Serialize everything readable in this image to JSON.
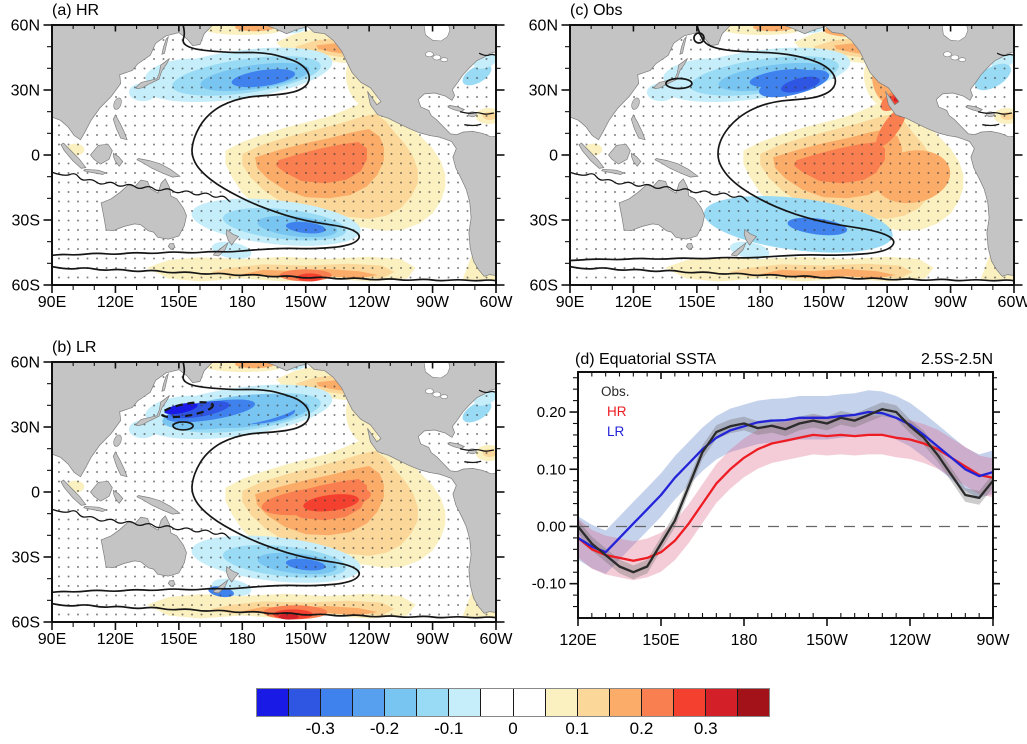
{
  "panels": {
    "a": {
      "label": "(a) HR"
    },
    "b": {
      "label": "(b) LR"
    },
    "c": {
      "label": "(c) Obs"
    },
    "d": {
      "label": "(d) Equatorial SSTA",
      "annotation": "2.5S-2.5N",
      "legend": [
        {
          "name": "Obs.",
          "color": "#2b2b2b"
        },
        {
          "name": "HR",
          "color": "#ee1c23"
        },
        {
          "name": "LR",
          "color": "#2323d8"
        }
      ]
    }
  },
  "map_axes": {
    "x_tick_labels": [
      "90E",
      "120E",
      "150E",
      "180",
      "150W",
      "120W",
      "90W",
      "60W"
    ],
    "x_tick_lons_deg_east": [
      90,
      120,
      150,
      180,
      210,
      240,
      270,
      300
    ],
    "y_tick_labels": [
      "60N",
      "30N",
      "0",
      "30S",
      "60S"
    ],
    "y_tick_lats": [
      60,
      30,
      0,
      -30,
      -60
    ],
    "minor_tick_step_deg": 10
  },
  "colorbar": {
    "tick_labels": [
      "-0.3",
      "-0.2",
      "-0.1",
      "0",
      "0.1",
      "0.2",
      "0.3"
    ],
    "cell_colors": [
      "#1a1ae6",
      "#2f55e3",
      "#3f82ee",
      "#57a0ef",
      "#79c5f2",
      "#99dbf5",
      "#c6eefa",
      "#ffffff",
      "#ffffff",
      "#faf0c0",
      "#fbd89a",
      "#fbac69",
      "#f97e50",
      "#f4402f",
      "#d21f28",
      "#a31218"
    ],
    "bin_edges": [
      -0.4,
      -0.35,
      -0.3,
      -0.25,
      -0.2,
      -0.15,
      -0.1,
      -0.05,
      0,
      0.05,
      0.1,
      0.15,
      0.2,
      0.25,
      0.3,
      0.35,
      0.4
    ]
  },
  "map_colors": {
    "ocean": "#ffffff",
    "land": "#c4c4c4",
    "coastline": "#7d7d7d",
    "contour": "#161616",
    "stipple": "#3a3a3a"
  },
  "chart_data": [
    {
      "type": "heatmap",
      "panel": "a",
      "title": "(a) HR",
      "lon_range": [
        "90E",
        "60W"
      ],
      "lat_range": [
        "60S",
        "60N"
      ],
      "x_ticks": [
        "90E",
        "120E",
        "150E",
        "180",
        "150W",
        "120W",
        "90W",
        "60W"
      ],
      "y_ticks": [
        "60N",
        "30N",
        "0",
        "30S",
        "60S"
      ],
      "value_bin_width": 0.05,
      "features": "cool anomaly NW and SW Pacific, warm tongue along equator to eastern Pacific, warm band near 60S, zero contour horseshoe, stippled significance"
    },
    {
      "type": "heatmap",
      "panel": "b",
      "title": "(b) LR",
      "lon_range": [
        "90E",
        "60W"
      ],
      "lat_range": [
        "60S",
        "60N"
      ],
      "x_ticks": [
        "90E",
        "120E",
        "150E",
        "180",
        "150W",
        "120W",
        "90W",
        "60W"
      ],
      "y_ticks": [
        "60N",
        "30N",
        "0",
        "30S",
        "60S"
      ],
      "value_bin_width": 0.05,
      "features": "strong cool core near Japan, intense warm equatorial band, strong warm patch near 60S 150W, stippled significance"
    },
    {
      "type": "heatmap",
      "panel": "c",
      "title": "(c) Obs",
      "lon_range": [
        "90E",
        "60W"
      ],
      "lat_range": [
        "60S",
        "60N"
      ],
      "x_ticks": [
        "90E",
        "120E",
        "150E",
        "180",
        "150W",
        "120W",
        "90W",
        "60W"
      ],
      "y_ticks": [
        "60N",
        "30N",
        "0",
        "30S",
        "60S"
      ],
      "value_bin_width": 0.05,
      "features": "cool core central North Pacific, warm core off Baja California, broad warm eastern Pacific, stippled significance"
    },
    {
      "type": "line",
      "panel": "d",
      "title": "(d) Equatorial SSTA",
      "region": "2.5S-2.5N",
      "x_tick_labels": [
        "120E",
        "150E",
        "180",
        "150W",
        "120W",
        "90W"
      ],
      "x_tick_lons_deg_east": [
        120,
        150,
        180,
        210,
        240,
        270
      ],
      "x_minor_step_deg": 5,
      "y_tick_labels": [
        "0.20",
        "0.10",
        "0.00",
        "-0.10"
      ],
      "y_ticks": [
        0.2,
        0.1,
        0.0,
        -0.1
      ],
      "y_minor_step": 0.02,
      "ylim": [
        -0.16,
        0.27
      ],
      "zero_line": "dashed",
      "x_deg_east": [
        120,
        125,
        130,
        135,
        140,
        145,
        150,
        155,
        160,
        165,
        170,
        175,
        180,
        185,
        190,
        195,
        200,
        205,
        210,
        215,
        220,
        225,
        230,
        235,
        240,
        245,
        250,
        255,
        260,
        265,
        270
      ],
      "series": [
        {
          "name": "Obs.",
          "color": "#2b2b2b",
          "band_color": "rgba(110,110,110,0.35)",
          "band_halfwidth": 0.012,
          "values": [
            0.0,
            -0.03,
            -0.05,
            -0.07,
            -0.08,
            -0.07,
            -0.03,
            0.01,
            0.07,
            0.13,
            0.165,
            0.175,
            0.18,
            0.172,
            0.176,
            0.17,
            0.18,
            0.185,
            0.18,
            0.19,
            0.185,
            0.195,
            0.205,
            0.2,
            0.175,
            0.155,
            0.125,
            0.09,
            0.055,
            0.05,
            0.08
          ]
        },
        {
          "name": "HR",
          "color": "#ee1c23",
          "band_color": "rgba(222,95,135,0.32)",
          "band_halfwidth": 0.034,
          "values": [
            -0.02,
            -0.04,
            -0.05,
            -0.055,
            -0.06,
            -0.055,
            -0.045,
            -0.025,
            0.005,
            0.04,
            0.075,
            0.1,
            0.12,
            0.135,
            0.145,
            0.15,
            0.155,
            0.16,
            0.158,
            0.16,
            0.158,
            0.16,
            0.16,
            0.155,
            0.152,
            0.145,
            0.135,
            0.12,
            0.105,
            0.09,
            0.085
          ]
        },
        {
          "name": "LR",
          "color": "#2323d8",
          "band_color": "rgba(75,115,195,0.32)",
          "band_halfwidth": 0.038,
          "values": [
            -0.02,
            -0.035,
            -0.045,
            -0.02,
            0.005,
            0.03,
            0.055,
            0.085,
            0.11,
            0.135,
            0.155,
            0.168,
            0.175,
            0.182,
            0.185,
            0.186,
            0.19,
            0.19,
            0.19,
            0.193,
            0.195,
            0.2,
            0.198,
            0.19,
            0.178,
            0.16,
            0.14,
            0.12,
            0.1,
            0.088,
            0.095
          ]
        }
      ]
    }
  ]
}
